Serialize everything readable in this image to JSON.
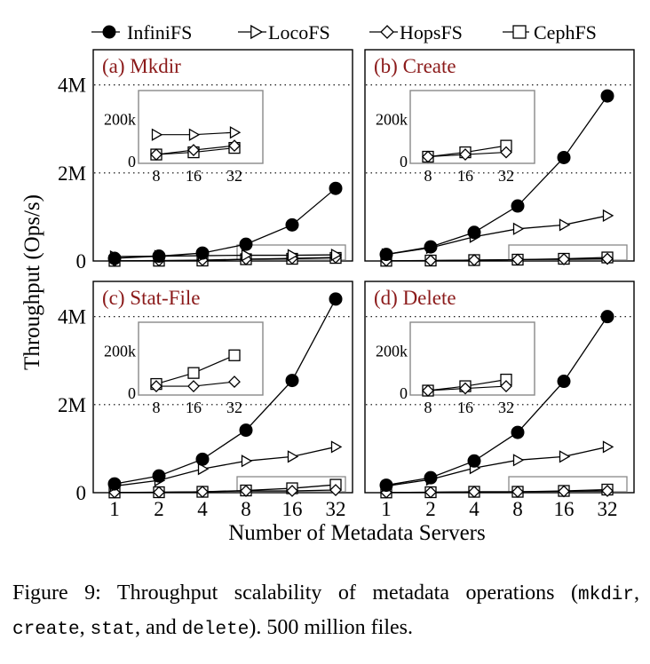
{
  "figure": {
    "caption": {
      "label": "Figure 9:",
      "text": "Throughput scalability of metadata operations",
      "open_paren": "(",
      "op1": "mkdir",
      "sep1": ", ",
      "op2": "create",
      "sep2": ", ",
      "op3": "stat",
      "sep3": ", and ",
      "op4": "delete",
      "close": "). 500 million files."
    },
    "colors": {
      "title": "#8b1a1a",
      "line": "#000000",
      "frame": "#000000",
      "inset_frame": "#888888"
    }
  },
  "chart_data": {
    "type": "line",
    "xlabel": "Number of Metadata Servers",
    "ylabel": "Throughput (Ops/s)",
    "x": [
      "1",
      "2",
      "4",
      "8",
      "16",
      "32"
    ],
    "ytick_labels": [
      "0",
      "2M",
      "4M"
    ],
    "ytick_values": [
      0,
      2000000,
      4000000
    ],
    "ylim": [
      0,
      4800000
    ],
    "inset_x": [
      "8",
      "16",
      "32"
    ],
    "inset_ytick_labels": [
      "0",
      "200k"
    ],
    "inset_ylim": [
      0,
      330000
    ],
    "legend": [
      {
        "name": "InfiniFS",
        "marker": "filled-circle"
      },
      {
        "name": "LocoFS",
        "marker": "right-triangle"
      },
      {
        "name": "HopsFS",
        "marker": "diamond"
      },
      {
        "name": "CephFS",
        "marker": "square"
      }
    ],
    "legend_position": "top",
    "panels": [
      {
        "title": "(a) Mkdir",
        "series": [
          {
            "name": "InfiniFS",
            "values": [
              60000,
              110000,
              180000,
              380000,
              820000,
              1650000
            ]
          },
          {
            "name": "LocoFS",
            "values": [
              100000,
              110000,
              120000,
              130000,
              130000,
              140000
            ]
          },
          {
            "name": "HopsFS",
            "values": [
              5000,
              10000,
              20000,
              40000,
              60000,
              80000
            ]
          },
          {
            "name": "CephFS",
            "values": [
              3000,
              6000,
              10000,
              40000,
              50000,
              70000
            ]
          }
        ]
      },
      {
        "title": "(b) Create",
        "series": [
          {
            "name": "InfiniFS",
            "values": [
              150000,
              320000,
              650000,
              1250000,
              2350000,
              3750000
            ]
          },
          {
            "name": "LocoFS",
            "values": [
              150000,
              300000,
              550000,
              730000,
              820000,
              1030000
            ]
          },
          {
            "name": "HopsFS",
            "values": [
              5000,
              10000,
              20000,
              30000,
              40000,
              50000
            ]
          },
          {
            "name": "CephFS",
            "values": [
              5000,
              10000,
              20000,
              30000,
              50000,
              80000
            ]
          }
        ]
      },
      {
        "title": "(c) Stat-File",
        "series": [
          {
            "name": "InfiniFS",
            "values": [
              200000,
              380000,
              760000,
              1420000,
              2550000,
              4400000
            ]
          },
          {
            "name": "LocoFS",
            "values": [
              150000,
              280000,
              540000,
              720000,
              820000,
              1040000
            ]
          },
          {
            "name": "HopsFS",
            "values": [
              5000,
              10000,
              20000,
              40000,
              40000,
              60000
            ]
          },
          {
            "name": "CephFS",
            "values": [
              5000,
              10000,
              20000,
              50000,
              100000,
              180000
            ]
          }
        ]
      },
      {
        "title": "(d) Delete",
        "series": [
          {
            "name": "InfiniFS",
            "values": [
              170000,
              340000,
              720000,
              1370000,
              2530000,
              4000000
            ]
          },
          {
            "name": "LocoFS",
            "values": [
              150000,
              300000,
              560000,
              740000,
              820000,
              1040000
            ]
          },
          {
            "name": "HopsFS",
            "values": [
              5000,
              10000,
              20000,
              20000,
              30000,
              40000
            ]
          },
          {
            "name": "CephFS",
            "values": [
              5000,
              10000,
              20000,
              20000,
              40000,
              70000
            ]
          }
        ]
      }
    ]
  }
}
